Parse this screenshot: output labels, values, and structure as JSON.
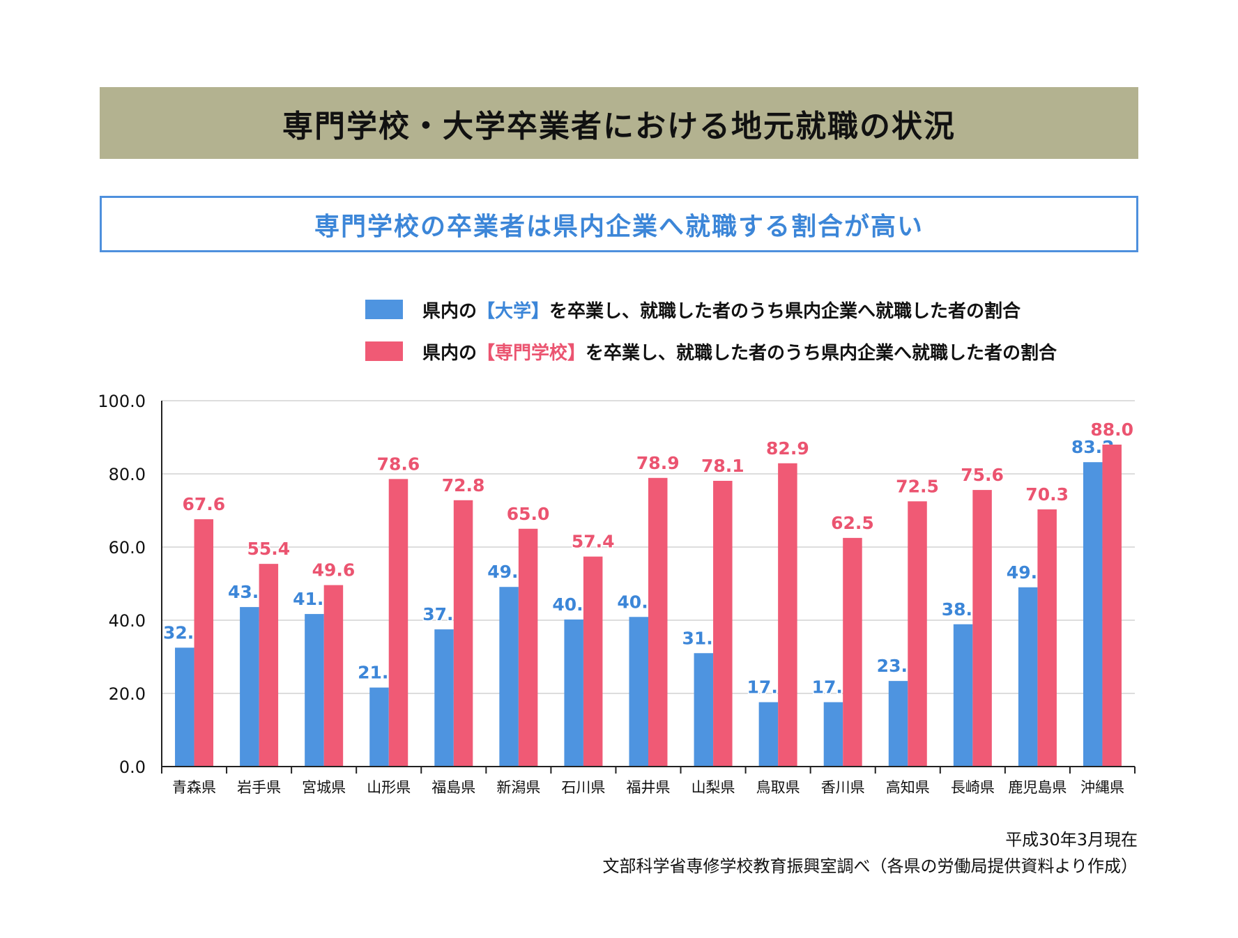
{
  "header": {
    "title": "専門学校・大学卒業者における地元就職の状況",
    "subtitle": "専門学校の卒業者は県内企業へ就職する割合が高い"
  },
  "legend": {
    "items": [
      {
        "prefix": "県内の",
        "highlight": "【大学】",
        "suffix": "を卒業し、就職した者のうち県内企業へ就職した者の割合",
        "color": "#4e94e0"
      },
      {
        "prefix": "県内の",
        "highlight": "【専門学校】",
        "suffix": "を卒業し、就職した者のうち県内企業へ就職した者の割合",
        "color": "#f05a75"
      }
    ]
  },
  "chart_data": {
    "type": "bar",
    "categories": [
      "青森県",
      "岩手県",
      "宮城県",
      "山形県",
      "福島県",
      "新潟県",
      "石川県",
      "福井県",
      "山梨県",
      "鳥取県",
      "香川県",
      "高知県",
      "長崎県",
      "鹿児島県",
      "沖縄県"
    ],
    "series": [
      {
        "name": "県内の【大学】を卒業し、就職した者のうち県内企業へ就職した者の割合",
        "color": "#4e94e0",
        "label_color": "#3c86d8",
        "values": [
          32.5,
          43.6,
          41.7,
          21.6,
          37.5,
          49.1,
          40.2,
          40.9,
          31.0,
          17.6,
          17.6,
          23.4,
          38.9,
          49.0,
          83.2
        ]
      },
      {
        "name": "県内の【専門学校】を卒業し、就職した者のうち県内企業へ就職した者の割合",
        "color": "#f05a75",
        "label_color": "#eb5470",
        "values": [
          67.6,
          55.4,
          49.6,
          78.6,
          72.8,
          65.0,
          57.4,
          78.9,
          78.1,
          82.9,
          62.5,
          72.5,
          75.6,
          70.3,
          88.0
        ]
      }
    ],
    "yticks": [
      "0.0",
      "20.0",
      "40.0",
      "60.0",
      "80.0",
      "100.0"
    ],
    "ylim": [
      0,
      100
    ],
    "grid": true,
    "legend_position": "top-right"
  },
  "source": {
    "line1": "平成30年3月現在",
    "line2": "文部科学省専修学校教育振興室調べ（各県の労働局提供資料より作成）"
  }
}
